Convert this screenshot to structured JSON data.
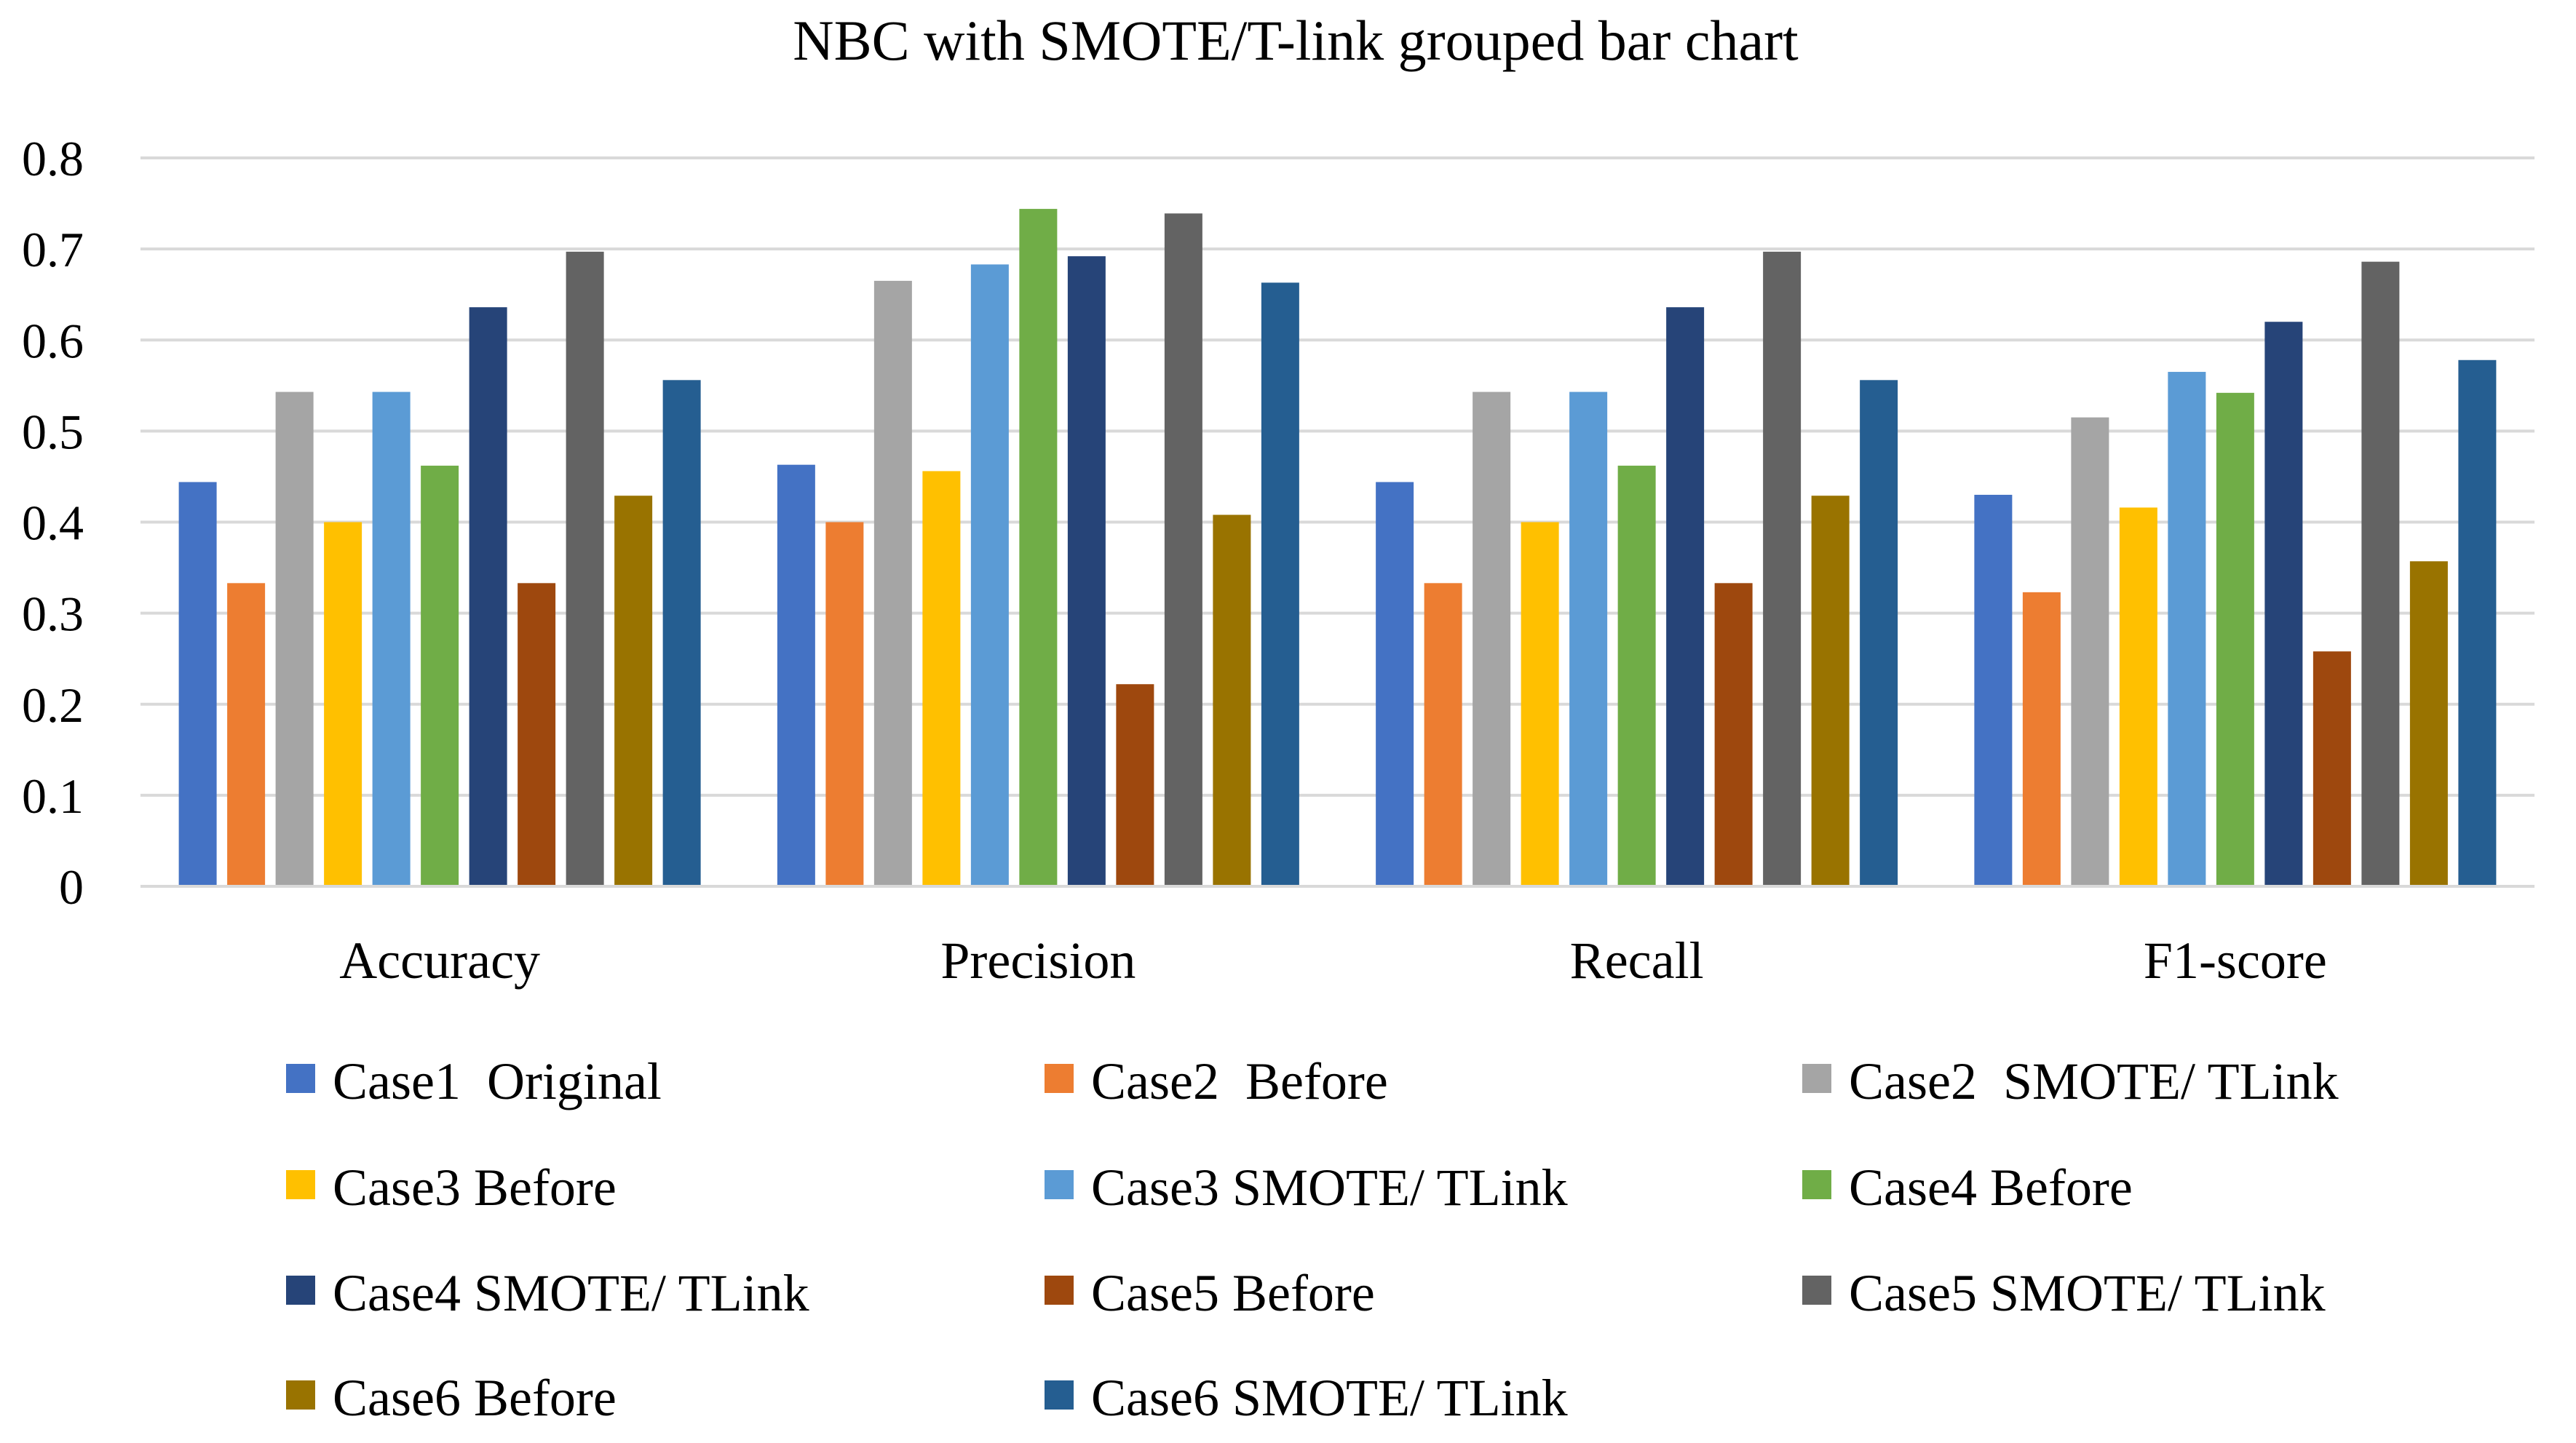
{
  "chart_data": {
    "type": "bar",
    "title": "NBC with SMOTE/T-link grouped bar chart",
    "xlabel": "",
    "ylabel": "",
    "ylim": [
      0,
      0.8
    ],
    "yticks": [
      "0",
      "0.1",
      "0.2",
      "0.3",
      "0.4",
      "0.5",
      "0.6",
      "0.7",
      "0.8"
    ],
    "grid": true,
    "legend_position": "bottom",
    "categories": [
      "Accuracy",
      "Precision",
      "Recall",
      "F1-score"
    ],
    "series": [
      {
        "name": "Case1  Original",
        "color": "#4472C4",
        "values": [
          0.444,
          0.463,
          0.444,
          0.43
        ]
      },
      {
        "name": "Case2  Before",
        "color": "#ED7D31",
        "values": [
          0.333,
          0.4,
          0.333,
          0.323
        ]
      },
      {
        "name": "Case2  SMOTE/ TLink",
        "color": "#A5A5A5",
        "values": [
          0.543,
          0.665,
          0.543,
          0.515
        ]
      },
      {
        "name": "Case3 Before",
        "color": "#FFC000",
        "values": [
          0.4,
          0.456,
          0.4,
          0.416
        ]
      },
      {
        "name": "Case3 SMOTE/ TLink",
        "color": "#5B9BD5",
        "values": [
          0.543,
          0.683,
          0.543,
          0.565
        ]
      },
      {
        "name": "Case4 Before",
        "color": "#70AD47",
        "values": [
          0.462,
          0.744,
          0.462,
          0.542
        ]
      },
      {
        "name": "Case4 SMOTE/ TLink",
        "color": "#264478",
        "values": [
          0.636,
          0.692,
          0.636,
          0.62
        ]
      },
      {
        "name": "Case5 Before",
        "color": "#9E480E",
        "values": [
          0.333,
          0.222,
          0.333,
          0.258
        ]
      },
      {
        "name": "Case5 SMOTE/ TLink",
        "color": "#636363",
        "values": [
          0.697,
          0.739,
          0.697,
          0.686
        ]
      },
      {
        "name": "Case6 Before",
        "color": "#997300",
        "values": [
          0.429,
          0.408,
          0.429,
          0.357
        ]
      },
      {
        "name": "Case6 SMOTE/ TLink",
        "color": "#255E91",
        "values": [
          0.556,
          0.663,
          0.556,
          0.578
        ]
      }
    ]
  }
}
